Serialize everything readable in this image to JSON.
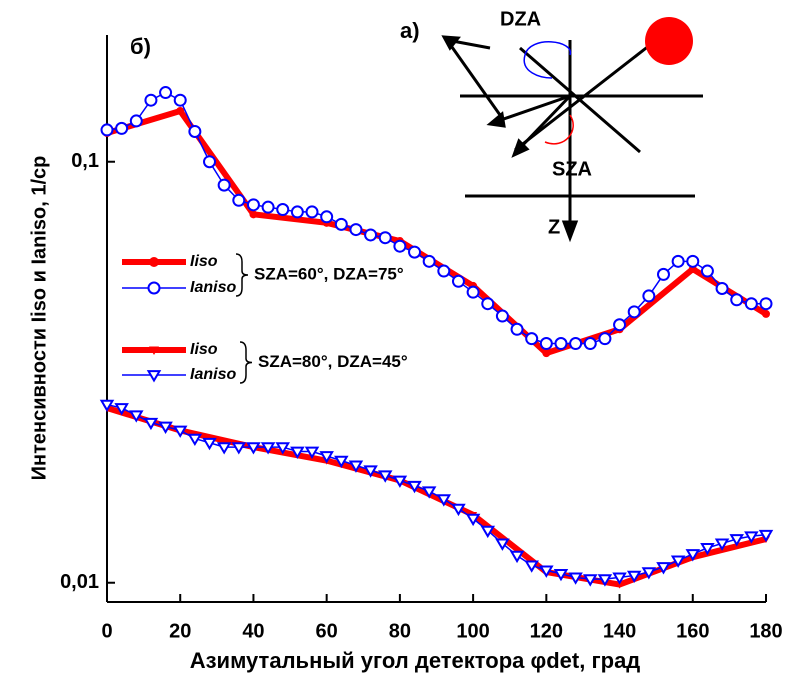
{
  "chart_data": {
    "type": "line",
    "log_y": true,
    "panel_label": "б)",
    "x_label": "Азимутальный угол детектора φdet, град",
    "y_label": "Интенсивности  Iiso и Ianiso, 1/ср",
    "xlim": [
      0,
      180
    ],
    "xticks": [
      0,
      20,
      40,
      60,
      80,
      100,
      120,
      140,
      160,
      180
    ],
    "ylim": [
      0.009,
      0.2
    ],
    "yticks": [
      {
        "value": 0.1,
        "label": "0,1"
      },
      {
        "value": 0.01,
        "label": "0,01"
      }
    ],
    "legend_groups": [
      "SZA=60°, DZA=75°",
      "SZA=80°, DZA=45°"
    ],
    "series": [
      {
        "name": "Iiso",
        "color": "#ff0000",
        "marker": "circle",
        "style": "thick",
        "x": [
          0,
          20,
          40,
          60,
          80,
          100,
          120,
          140,
          160,
          180
        ],
        "values": [
          0.117,
          0.132,
          0.075,
          0.0716,
          0.0648,
          0.0507,
          0.0351,
          0.04,
          0.0556,
          0.0435
        ]
      },
      {
        "name": "Ianiso",
        "color": "#0000ff",
        "marker": "circle",
        "style": "thin",
        "x": [
          0,
          4,
          8,
          12,
          16,
          20,
          24,
          28,
          32,
          36,
          40,
          44,
          48,
          52,
          56,
          60,
          64,
          68,
          72,
          76,
          80,
          84,
          88,
          92,
          96,
          100,
          104,
          108,
          112,
          116,
          120,
          124,
          128,
          132,
          136,
          140,
          144,
          148,
          152,
          156,
          160,
          164,
          168,
          172,
          176,
          180
        ],
        "values": [
          0.119,
          0.12,
          0.125,
          0.14,
          0.146,
          0.14,
          0.118,
          0.1,
          0.088,
          0.081,
          0.079,
          0.078,
          0.077,
          0.076,
          0.076,
          0.074,
          0.071,
          0.069,
          0.067,
          0.066,
          0.063,
          0.061,
          0.058,
          0.055,
          0.052,
          0.049,
          0.046,
          0.043,
          0.04,
          0.038,
          0.037,
          0.037,
          0.037,
          0.037,
          0.038,
          0.041,
          0.044,
          0.048,
          0.054,
          0.058,
          0.058,
          0.055,
          0.05,
          0.047,
          0.046,
          0.046
        ]
      },
      {
        "name": "Iiso",
        "color": "#ff0000",
        "marker": "triangle-down",
        "style": "thick",
        "x": [
          0,
          20,
          40,
          60,
          80,
          100,
          120,
          140,
          160,
          180
        ],
        "values": [
          0.026,
          0.023,
          0.021,
          0.0195,
          0.0175,
          0.0145,
          0.0106,
          0.0099,
          0.0115,
          0.0127
        ]
      },
      {
        "name": "Ianiso",
        "color": "#0000ff",
        "marker": "triangle-down",
        "style": "thin",
        "x": [
          0,
          4,
          8,
          12,
          16,
          20,
          24,
          28,
          32,
          36,
          40,
          44,
          48,
          52,
          56,
          60,
          64,
          68,
          72,
          76,
          80,
          84,
          88,
          92,
          96,
          100,
          104,
          108,
          112,
          116,
          120,
          124,
          128,
          132,
          136,
          140,
          144,
          148,
          152,
          156,
          160,
          164,
          168,
          172,
          176,
          180
        ],
        "values": [
          0.0265,
          0.026,
          0.025,
          0.024,
          0.0235,
          0.023,
          0.022,
          0.0215,
          0.021,
          0.021,
          0.021,
          0.021,
          0.021,
          0.0205,
          0.0205,
          0.02,
          0.0195,
          0.019,
          0.0185,
          0.018,
          0.0175,
          0.017,
          0.0165,
          0.0158,
          0.015,
          0.0142,
          0.0133,
          0.0124,
          0.0116,
          0.011,
          0.0107,
          0.0105,
          0.0103,
          0.0102,
          0.0102,
          0.0103,
          0.0104,
          0.0106,
          0.0109,
          0.0113,
          0.0117,
          0.0121,
          0.0124,
          0.0127,
          0.0129,
          0.013
        ]
      }
    ]
  },
  "inset": {
    "label": "а)",
    "dza": "DZA",
    "sza": "SZA",
    "z": "Z"
  }
}
